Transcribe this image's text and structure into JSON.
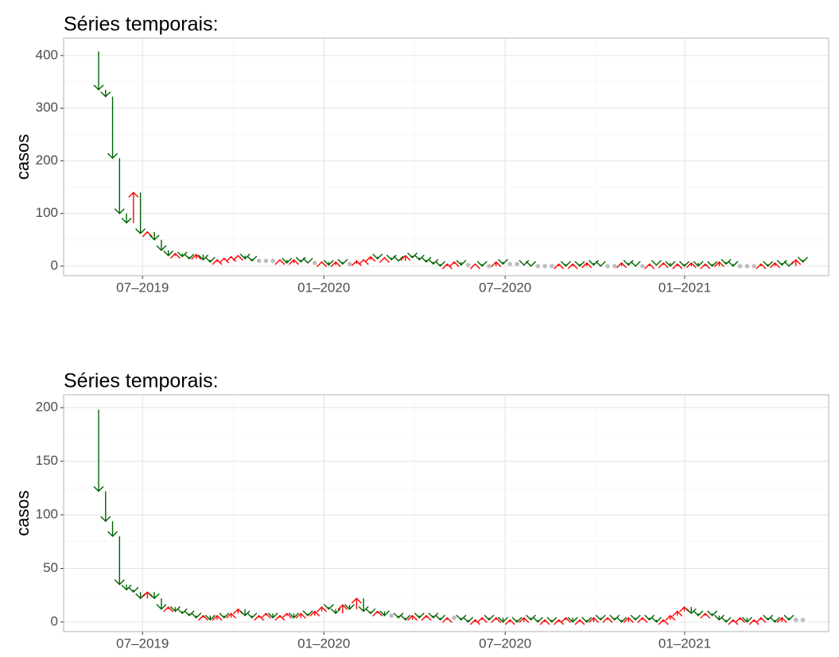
{
  "chart_data": [
    {
      "type": "arrow",
      "title": "Séries temporais:",
      "y_label": "casos",
      "x": [
        0,
        1,
        2,
        3,
        4,
        5,
        6,
        7,
        8,
        9,
        10,
        11,
        12,
        13,
        14,
        15,
        16,
        17,
        18,
        19,
        20,
        21,
        22,
        23,
        24,
        25,
        26,
        27,
        28,
        29,
        30,
        31,
        32,
        33,
        34,
        35,
        36,
        37,
        38,
        39,
        40,
        41,
        42,
        43,
        44,
        45,
        46,
        47,
        48,
        49,
        50,
        51,
        52,
        53,
        54,
        55,
        56,
        57,
        58,
        59,
        60,
        61,
        62,
        63,
        64,
        65,
        66,
        67,
        68,
        69,
        70,
        71,
        72,
        73,
        74,
        75,
        76,
        77,
        78,
        79,
        80,
        81,
        82,
        83,
        84,
        85,
        86,
        87,
        88,
        89,
        90,
        91,
        92,
        93,
        94,
        95,
        96,
        97,
        98,
        99,
        100,
        101,
        102
      ],
      "values": [
        408,
        335,
        322,
        205,
        100,
        82,
        140,
        62,
        65,
        50,
        30,
        20,
        24,
        18,
        14,
        22,
        12,
        8,
        12,
        15,
        18,
        20,
        14,
        10,
        10,
        10,
        10,
        12,
        6,
        12,
        8,
        6,
        6,
        8,
        2,
        8,
        4,
        4,
        10,
        12,
        18,
        14,
        16,
        12,
        10,
        20,
        16,
        12,
        8,
        4,
        0,
        4,
        8,
        2,
        2,
        4,
        0,
        0,
        8,
        4,
        4,
        4,
        2,
        0,
        0,
        0,
        0,
        4,
        0,
        4,
        0,
        6,
        2,
        0,
        0,
        0,
        6,
        2,
        0,
        0,
        4,
        2,
        6,
        0,
        4,
        0,
        6,
        0,
        4,
        0,
        8,
        4,
        0,
        0,
        0,
        0,
        4,
        0,
        6,
        2,
        0,
        12,
        8
      ],
      "colors": {
        "decrease": "#006400",
        "increase": "#ff0000",
        "same": "#bebebe"
      },
      "xlim": [
        -4.02,
        105.7
      ],
      "xticks": [
        {
          "value": 7.3,
          "label": "07–2019"
        },
        {
          "value": 33.3,
          "label": "01–2020"
        },
        {
          "value": 59.3,
          "label": "07–2020"
        },
        {
          "value": 85.05,
          "label": "01–2021"
        }
      ],
      "ylim": [
        -18.1,
        433
      ],
      "yticks": [
        0,
        100,
        200,
        300,
        400
      ],
      "grid": true
    },
    {
      "type": "arrow",
      "title": "Séries temporais:",
      "y_label": "casos",
      "x": [
        0,
        1,
        2,
        3,
        4,
        5,
        6,
        7,
        8,
        9,
        10,
        11,
        12,
        13,
        14,
        15,
        16,
        17,
        18,
        19,
        20,
        21,
        22,
        23,
        24,
        25,
        26,
        27,
        28,
        29,
        30,
        31,
        32,
        33,
        34,
        35,
        36,
        37,
        38,
        39,
        40,
        41,
        42,
        43,
        44,
        45,
        46,
        47,
        48,
        49,
        50,
        51,
        52,
        53,
        54,
        55,
        56,
        57,
        58,
        59,
        60,
        61,
        62,
        63,
        64,
        65,
        66,
        67,
        68,
        69,
        70,
        71,
        72,
        73,
        74,
        75,
        76,
        77,
        78,
        79,
        80,
        81,
        82,
        83,
        84,
        85,
        86,
        87,
        88,
        89,
        90,
        91,
        92,
        93,
        94,
        95,
        96,
        97,
        98,
        99,
        100,
        101,
        102
      ],
      "values": [
        198,
        122,
        94,
        80,
        35,
        30,
        28,
        22,
        28,
        22,
        12,
        14,
        10,
        8,
        6,
        4,
        6,
        2,
        6,
        4,
        8,
        12,
        6,
        4,
        6,
        8,
        4,
        6,
        8,
        4,
        8,
        6,
        10,
        14,
        12,
        8,
        16,
        12,
        22,
        10,
        8,
        10,
        6,
        6,
        4,
        2,
        6,
        4,
        6,
        4,
        2,
        4,
        4,
        2,
        0,
        2,
        4,
        2,
        4,
        0,
        2,
        0,
        4,
        2,
        0,
        2,
        0,
        2,
        4,
        0,
        2,
        0,
        4,
        2,
        4,
        2,
        0,
        4,
        2,
        4,
        2,
        0,
        2,
        6,
        10,
        14,
        8,
        6,
        8,
        6,
        2,
        0,
        2,
        4,
        0,
        2,
        4,
        2,
        0,
        4,
        2,
        2,
        2
      ],
      "colors": {
        "decrease": "#006400",
        "increase": "#ff0000",
        "same": "#bebebe"
      },
      "xlim": [
        -4.02,
        105.7
      ],
      "xticks": [
        {
          "value": 7.3,
          "label": "07–2019"
        },
        {
          "value": 33.3,
          "label": "01–2020"
        },
        {
          "value": 59.3,
          "label": "07–2020"
        },
        {
          "value": 85.05,
          "label": "01–2021"
        }
      ],
      "ylim": [
        -8.9,
        211.9
      ],
      "yticks": [
        0,
        50,
        100,
        150,
        200
      ],
      "grid": true
    }
  ]
}
